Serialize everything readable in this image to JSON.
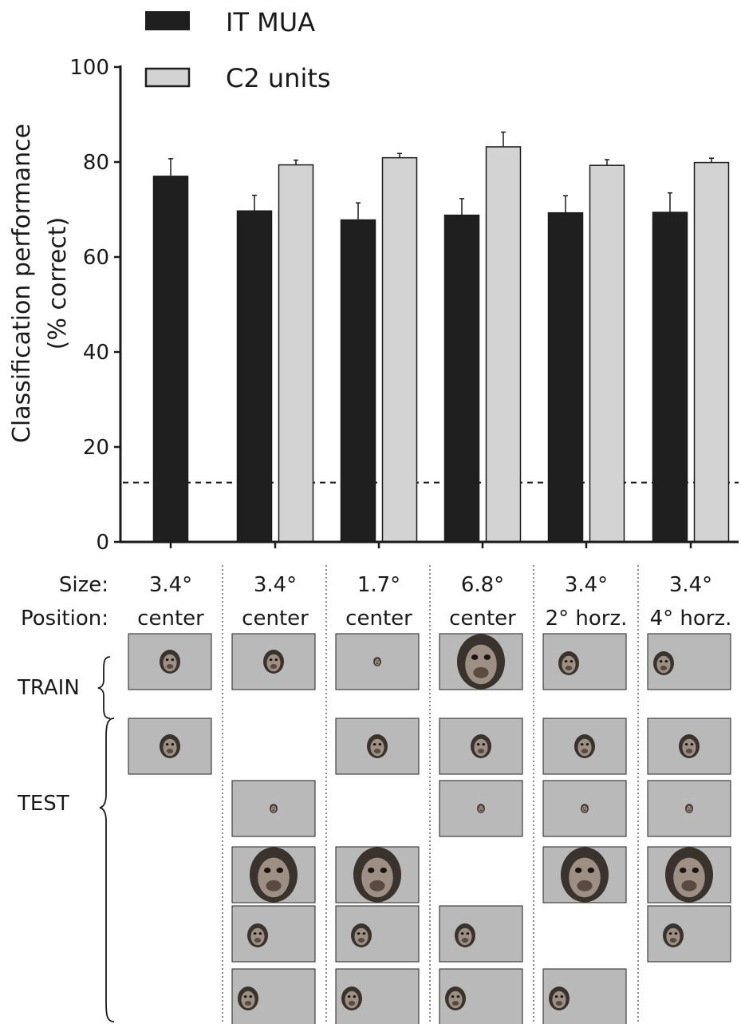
{
  "chart_data": {
    "type": "bar",
    "ylabel_line1": "Classification performance",
    "ylabel_line2": "(% correct)",
    "ylim": [
      0,
      100
    ],
    "yticks": [
      "0",
      "20",
      "40",
      "60",
      "80",
      "100"
    ],
    "chance_level": 12.5,
    "series": [
      {
        "name": "IT MUA",
        "color": "#1f1f1f",
        "values": [
          77,
          69.7,
          67.8,
          68.8,
          69.3,
          69.4
        ],
        "errors": [
          3.7,
          3.3,
          3.6,
          3.5,
          3.6,
          4.1
        ]
      },
      {
        "name": "C2 units",
        "color": "#d3d3d3",
        "values": [
          null,
          79.4,
          80.9,
          83.2,
          79.3,
          79.9
        ],
        "errors": [
          null,
          1.0,
          0.9,
          3.1,
          1.2,
          0.9
        ]
      }
    ]
  },
  "conditions": {
    "size_label": "Size:",
    "position_label": "Position:",
    "sizes": [
      "3.4°",
      "3.4°",
      "1.7°",
      "6.8°",
      "3.4°",
      "3.4°"
    ],
    "positions": [
      "center",
      "center",
      "center",
      "center",
      "2° horz.",
      "4° horz."
    ]
  },
  "stimuli": {
    "train_label": "TRAIN",
    "test_label": "TEST",
    "train": [
      {
        "scale": "medium",
        "pos": "center"
      },
      {
        "scale": "medium",
        "pos": "center"
      },
      {
        "scale": "small",
        "pos": "center"
      },
      {
        "scale": "large",
        "pos": "center"
      },
      {
        "scale": "medium",
        "pos": "2deg"
      },
      {
        "scale": "medium",
        "pos": "4deg"
      }
    ],
    "test": [
      [
        {
          "row": 0,
          "scale": "medium",
          "pos": "center"
        }
      ],
      [
        {
          "row": 1,
          "scale": "small",
          "pos": "center"
        },
        {
          "row": 2,
          "scale": "large",
          "pos": "center"
        },
        {
          "row": 3,
          "scale": "medium",
          "pos": "2deg"
        },
        {
          "row": 4,
          "scale": "medium",
          "pos": "4deg"
        }
      ],
      [
        {
          "row": 0,
          "scale": "medium",
          "pos": "center"
        },
        {
          "row": 2,
          "scale": "large",
          "pos": "center"
        },
        {
          "row": 3,
          "scale": "medium",
          "pos": "2deg"
        },
        {
          "row": 4,
          "scale": "medium",
          "pos": "4deg"
        }
      ],
      [
        {
          "row": 0,
          "scale": "medium",
          "pos": "center"
        },
        {
          "row": 1,
          "scale": "small",
          "pos": "center"
        },
        {
          "row": 3,
          "scale": "medium",
          "pos": "2deg"
        },
        {
          "row": 4,
          "scale": "medium",
          "pos": "4deg"
        }
      ],
      [
        {
          "row": 0,
          "scale": "medium",
          "pos": "center"
        },
        {
          "row": 1,
          "scale": "small",
          "pos": "center"
        },
        {
          "row": 2,
          "scale": "large",
          "pos": "center"
        },
        {
          "row": 4,
          "scale": "medium",
          "pos": "4deg"
        }
      ],
      [
        {
          "row": 0,
          "scale": "medium",
          "pos": "center"
        },
        {
          "row": 1,
          "scale": "small",
          "pos": "center"
        },
        {
          "row": 2,
          "scale": "large",
          "pos": "center"
        },
        {
          "row": 3,
          "scale": "medium",
          "pos": "2deg"
        }
      ]
    ]
  }
}
